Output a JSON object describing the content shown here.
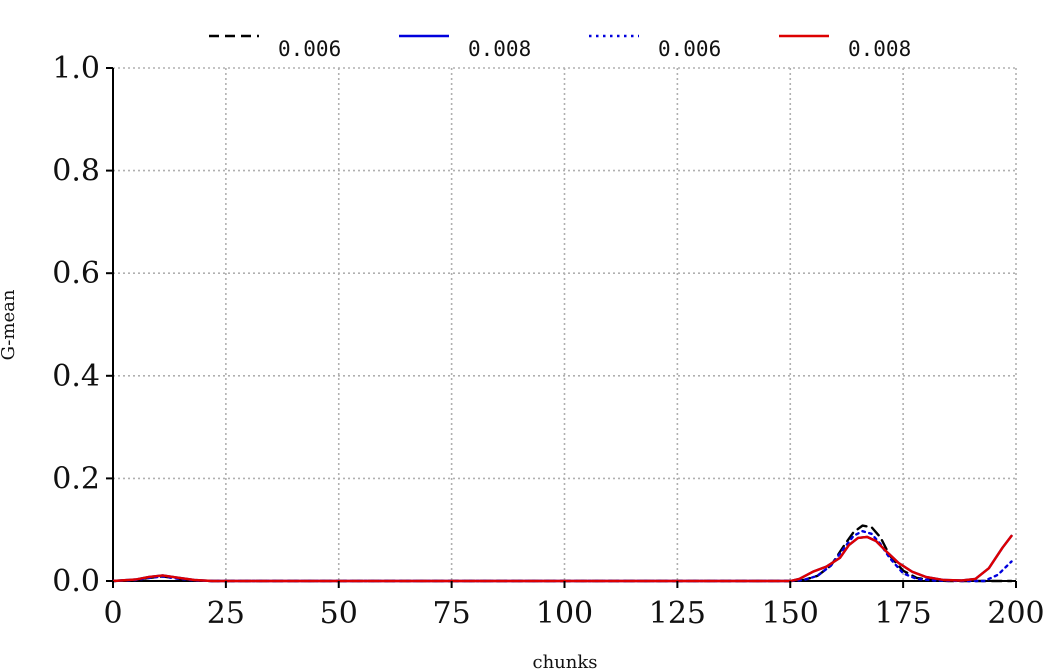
{
  "chart_data": {
    "type": "line",
    "title": "",
    "xlabel": "chunks",
    "ylabel": "G-mean",
    "xlim": [
      0,
      200
    ],
    "ylim": [
      0,
      1.0
    ],
    "xticks": [
      0,
      25,
      50,
      75,
      100,
      125,
      150,
      175,
      200
    ],
    "xtick_labels": [
      "0",
      "25",
      "50",
      "75",
      "100",
      "125",
      "150",
      "175",
      "200"
    ],
    "yticks": [
      0,
      0.2,
      0.4,
      0.6,
      0.8,
      1.0
    ],
    "ytick_labels": [
      "0.0",
      "0.2",
      "0.4",
      "0.6",
      "0.8",
      "1.0"
    ],
    "grid": true,
    "legend_position": "top",
    "series": [
      {
        "name": "0.006",
        "color": "#000000",
        "style": "dashed",
        "points": [
          [
            0,
            0
          ],
          [
            5,
            0.002
          ],
          [
            8,
            0.006
          ],
          [
            11,
            0.009
          ],
          [
            14,
            0.005
          ],
          [
            18,
            0.001
          ],
          [
            22,
            0
          ],
          [
            100,
            0
          ],
          [
            150,
            0
          ],
          [
            153,
            0.002
          ],
          [
            156,
            0.01
          ],
          [
            159,
            0.03
          ],
          [
            162,
            0.07
          ],
          [
            164,
            0.095
          ],
          [
            166,
            0.108
          ],
          [
            168,
            0.105
          ],
          [
            170,
            0.085
          ],
          [
            172,
            0.05
          ],
          [
            175,
            0.02
          ],
          [
            178,
            0.006
          ],
          [
            182,
            0.001
          ],
          [
            185,
            0
          ],
          [
            195,
            0
          ],
          [
            199,
            0
          ]
        ]
      },
      {
        "name": "0.008",
        "color": "#0000dd",
        "style": "solid",
        "points": [
          [
            0,
            0
          ],
          [
            5,
            0.003
          ],
          [
            8,
            0.008
          ],
          [
            11,
            0.011
          ],
          [
            14,
            0.007
          ],
          [
            18,
            0.002
          ],
          [
            22,
            0
          ],
          [
            100,
            0
          ],
          [
            150,
            0
          ],
          [
            152,
            0.004
          ],
          [
            155,
            0.018
          ],
          [
            158,
            0.028
          ],
          [
            161,
            0.045
          ],
          [
            163,
            0.07
          ],
          [
            165,
            0.084
          ],
          [
            167,
            0.086
          ],
          [
            169,
            0.078
          ],
          [
            171,
            0.06
          ],
          [
            174,
            0.035
          ],
          [
            177,
            0.018
          ],
          [
            180,
            0.008
          ],
          [
            184,
            0.002
          ],
          [
            188,
            0.001
          ],
          [
            191,
            0.004
          ],
          [
            194,
            0.025
          ],
          [
            197,
            0.065
          ],
          [
            199,
            0.088
          ]
        ]
      },
      {
        "name": "0.006",
        "color": "#0000dd",
        "style": "dotted",
        "points": [
          [
            0,
            0
          ],
          [
            5,
            0.002
          ],
          [
            8,
            0.006
          ],
          [
            11,
            0.009
          ],
          [
            14,
            0.005
          ],
          [
            18,
            0.001
          ],
          [
            22,
            0
          ],
          [
            100,
            0
          ],
          [
            150,
            0
          ],
          [
            153,
            0.002
          ],
          [
            156,
            0.01
          ],
          [
            159,
            0.03
          ],
          [
            162,
            0.065
          ],
          [
            164,
            0.088
          ],
          [
            166,
            0.097
          ],
          [
            168,
            0.092
          ],
          [
            170,
            0.072
          ],
          [
            172,
            0.045
          ],
          [
            175,
            0.015
          ],
          [
            178,
            0.004
          ],
          [
            182,
            0.001
          ],
          [
            188,
            0
          ],
          [
            193,
            0
          ],
          [
            196,
            0.012
          ],
          [
            199,
            0.038
          ]
        ]
      },
      {
        "name": "0.008",
        "color": "#dd0000",
        "style": "solid",
        "points": [
          [
            0,
            0
          ],
          [
            5,
            0.003
          ],
          [
            8,
            0.008
          ],
          [
            11,
            0.011
          ],
          [
            14,
            0.007
          ],
          [
            18,
            0.002
          ],
          [
            22,
            0
          ],
          [
            100,
            0
          ],
          [
            150,
            0
          ],
          [
            152,
            0.004
          ],
          [
            155,
            0.018
          ],
          [
            158,
            0.028
          ],
          [
            161,
            0.045
          ],
          [
            163,
            0.07
          ],
          [
            165,
            0.084
          ],
          [
            167,
            0.086
          ],
          [
            169,
            0.078
          ],
          [
            171,
            0.06
          ],
          [
            174,
            0.035
          ],
          [
            177,
            0.018
          ],
          [
            180,
            0.008
          ],
          [
            184,
            0.002
          ],
          [
            188,
            0.001
          ],
          [
            191,
            0.004
          ],
          [
            194,
            0.025
          ],
          [
            197,
            0.065
          ],
          [
            199,
            0.088
          ]
        ]
      }
    ]
  }
}
